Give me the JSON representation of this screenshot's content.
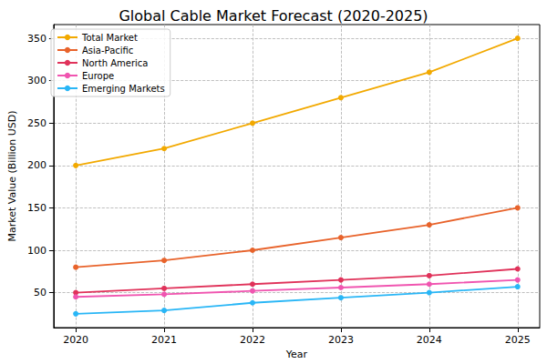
{
  "chart_data": {
    "type": "line",
    "title": "Global Cable Market Forecast (2020-2025)",
    "x_label": "Year",
    "y_label": "Market Value (Billion USD)",
    "x": [
      2020,
      2021,
      2022,
      2023,
      2024,
      2025
    ],
    "series": [
      {
        "name": "Total Market",
        "color": "#f2a900",
        "values": [
          200,
          220,
          250,
          280,
          310,
          350
        ]
      },
      {
        "name": "Asia-Pacific",
        "color": "#e8632b",
        "values": [
          80,
          88,
          100,
          115,
          130,
          150
        ]
      },
      {
        "name": "North America",
        "color": "#e0325a",
        "values": [
          50,
          55,
          60,
          65,
          70,
          78
        ]
      },
      {
        "name": "Europe",
        "color": "#f055b0",
        "values": [
          45,
          48,
          52,
          56,
          60,
          65
        ]
      },
      {
        "name": "Emerging Markets",
        "color": "#29b6f6",
        "values": [
          25,
          29,
          38,
          44,
          50,
          57
        ]
      }
    ],
    "xlim": [
      2019.75,
      2025.25
    ],
    "xticks": [
      2020,
      2021,
      2022,
      2023,
      2024,
      2025
    ],
    "ylim": [
      8.75,
      366.25
    ],
    "yticks": [
      50,
      100,
      150,
      200,
      250,
      300,
      350
    ],
    "grid": true,
    "legend": "upper left",
    "marker": "circle",
    "line_style": "solid"
  }
}
